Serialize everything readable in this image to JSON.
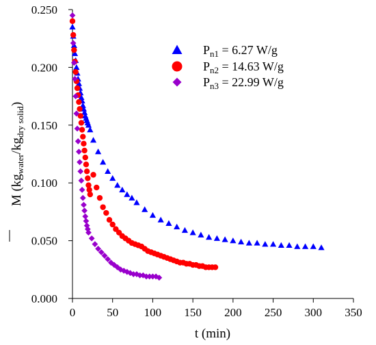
{
  "chart_data": {
    "type": "scatter",
    "xlabel": "t (min)",
    "ylabel": {
      "symbol": "M",
      "open": " (kg",
      "sub1": "water",
      "mid": "/kg",
      "sub2": "dry solid",
      "close": ")"
    },
    "xlim": [
      0,
      350
    ],
    "ylim": [
      0,
      0.25
    ],
    "xticks": [
      "0",
      "50",
      "100",
      "150",
      "200",
      "250",
      "300",
      "350"
    ],
    "yticks": [
      "0.000",
      "0.050",
      "0.100",
      "0.150",
      "0.200",
      "0.250"
    ],
    "grid": false,
    "legend_position": "top-right",
    "series": [
      {
        "name": "Pn1 = 6.27 W/g",
        "label": {
          "p": "P",
          "sub": "n1",
          "rest": " = 6.27 W/g"
        },
        "marker": "triangle",
        "color": "#0000ff",
        "x": [
          0,
          1,
          2,
          3,
          4,
          5,
          6,
          7,
          8,
          9,
          10,
          11,
          12,
          13,
          14,
          15,
          16,
          17,
          18,
          19,
          20,
          22,
          26,
          32,
          38,
          44,
          50,
          56,
          62,
          68,
          74,
          80,
          90,
          100,
          110,
          120,
          130,
          140,
          150,
          160,
          170,
          180,
          190,
          200,
          210,
          220,
          230,
          240,
          250,
          260,
          270,
          280,
          290,
          300,
          310
        ],
        "y": [
          0.235,
          0.227,
          0.219,
          0.212,
          0.206,
          0.2,
          0.195,
          0.19,
          0.186,
          0.182,
          0.178,
          0.174,
          0.171,
          0.167,
          0.164,
          0.161,
          0.158,
          0.156,
          0.154,
          0.152,
          0.15,
          0.146,
          0.137,
          0.127,
          0.118,
          0.11,
          0.104,
          0.098,
          0.094,
          0.09,
          0.087,
          0.083,
          0.077,
          0.072,
          0.068,
          0.065,
          0.062,
          0.059,
          0.057,
          0.055,
          0.053,
          0.052,
          0.051,
          0.05,
          0.049,
          0.048,
          0.048,
          0.047,
          0.047,
          0.046,
          0.046,
          0.045,
          0.045,
          0.045,
          0.044
        ]
      },
      {
        "name": "Pn2 = 14.63 W/g",
        "label": {
          "p": "P",
          "sub": "n2",
          "rest": " = 14.63 W/g"
        },
        "marker": "circle",
        "color": "#ff0000",
        "x": [
          0,
          1,
          2,
          3,
          4,
          5,
          6,
          7,
          8,
          9,
          10,
          11,
          12,
          13,
          14,
          15,
          16,
          17,
          18,
          19,
          20,
          21,
          22,
          26,
          30,
          34,
          38,
          42,
          46,
          50,
          54,
          58,
          62,
          66,
          70,
          74,
          78,
          82,
          86,
          90,
          94,
          98,
          102,
          106,
          110,
          114,
          118,
          122,
          126,
          130,
          134,
          138,
          142,
          146,
          150,
          154,
          158,
          162,
          166,
          170,
          174,
          178
        ],
        "y": [
          0.24,
          0.228,
          0.215,
          0.205,
          0.196,
          0.188,
          0.182,
          0.176,
          0.17,
          0.164,
          0.158,
          0.152,
          0.146,
          0.14,
          0.134,
          0.128,
          0.122,
          0.116,
          0.11,
          0.104,
          0.098,
          0.094,
          0.09,
          0.107,
          0.096,
          0.087,
          0.079,
          0.074,
          0.068,
          0.064,
          0.06,
          0.057,
          0.054,
          0.052,
          0.05,
          0.048,
          0.047,
          0.046,
          0.045,
          0.043,
          0.041,
          0.04,
          0.039,
          0.038,
          0.037,
          0.036,
          0.035,
          0.034,
          0.033,
          0.032,
          0.031,
          0.031,
          0.03,
          0.03,
          0.029,
          0.029,
          0.028,
          0.028,
          0.027,
          0.027,
          0.027,
          0.027
        ]
      },
      {
        "name": "Pn3 = 22.99 W/g",
        "label": {
          "p": "P",
          "sub": "n3",
          "rest": " = 22.99 W/g"
        },
        "marker": "diamond",
        "color": "#9900cc",
        "x": [
          0,
          1,
          2,
          3,
          4,
          5,
          6,
          7,
          8,
          9,
          10,
          11,
          12,
          13,
          14,
          15,
          16,
          17,
          18,
          19,
          20,
          24,
          28,
          32,
          36,
          40,
          44,
          48,
          52,
          56,
          60,
          64,
          68,
          72,
          76,
          80,
          84,
          88,
          92,
          96,
          100,
          104,
          108
        ],
        "y": [
          0.245,
          0.221,
          0.204,
          0.19,
          0.175,
          0.16,
          0.147,
          0.136,
          0.127,
          0.118,
          0.11,
          0.102,
          0.094,
          0.087,
          0.081,
          0.076,
          0.071,
          0.067,
          0.063,
          0.06,
          0.057,
          0.052,
          0.047,
          0.043,
          0.04,
          0.037,
          0.034,
          0.031,
          0.029,
          0.027,
          0.025,
          0.024,
          0.023,
          0.022,
          0.021,
          0.021,
          0.02,
          0.02,
          0.019,
          0.019,
          0.019,
          0.019,
          0.018
        ]
      }
    ]
  }
}
